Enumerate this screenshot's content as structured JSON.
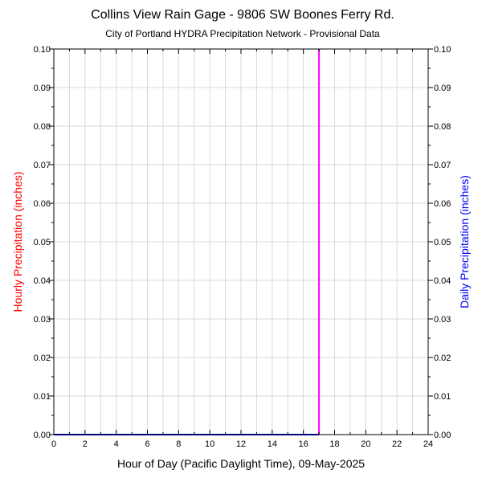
{
  "chart_data": {
    "type": "bar",
    "title": "Collins View Rain Gage - 9806 SW Boones Ferry Rd.",
    "subtitle": "City of Portland HYDRA Precipitation Network - Provisional Data",
    "xlabel": "Hour of Day (Pacific Daylight Time), 09-May-2025",
    "ylabel_left": "Hourly Precipitation (inches)",
    "ylabel_right": "Daily Precipitation (inches)",
    "xlim": [
      0,
      24
    ],
    "ylim": [
      0,
      0.1
    ],
    "x_ticks": [
      0,
      2,
      4,
      6,
      8,
      10,
      12,
      14,
      16,
      18,
      20,
      22,
      24
    ],
    "x_tick_labels": [
      "0",
      "2",
      "4",
      "6",
      "8",
      "10",
      "12",
      "14",
      "16",
      "18",
      "20",
      "22",
      "24"
    ],
    "y_ticks": [
      0,
      0.01,
      0.02,
      0.03,
      0.04,
      0.05,
      0.06,
      0.07,
      0.08,
      0.09,
      0.1
    ],
    "y_tick_labels": [
      "0.00",
      "0.01",
      "0.02",
      "0.03",
      "0.04",
      "0.05",
      "0.06",
      "0.07",
      "0.08",
      "0.09",
      "0.10"
    ],
    "grid": true,
    "series": [
      {
        "name": "Hourly Precipitation",
        "color": "#ff0000",
        "x": [
          0,
          1,
          2,
          3,
          4,
          5,
          6,
          7,
          8,
          9,
          10,
          11,
          12,
          13,
          14,
          15,
          16
        ],
        "values": [
          0,
          0,
          0,
          0,
          0,
          0,
          0,
          0,
          0,
          0,
          0,
          0,
          0,
          0,
          0,
          0,
          0
        ]
      },
      {
        "name": "Daily Precipitation",
        "color": "#0000ff",
        "x": [
          0,
          17
        ],
        "values": [
          0,
          0
        ]
      }
    ],
    "current_time_marker": {
      "x": 17,
      "color": "#ff00ff"
    }
  }
}
